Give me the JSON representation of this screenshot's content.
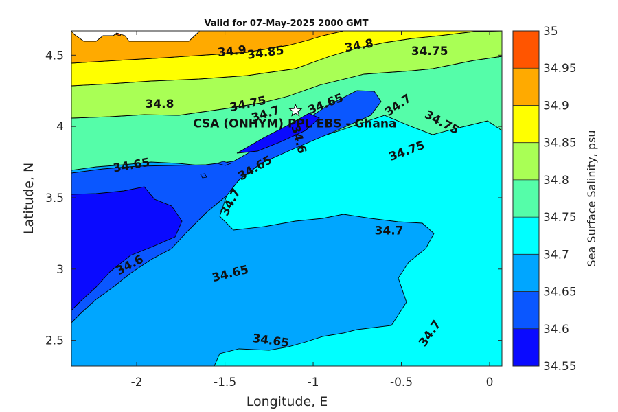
{
  "chart_data": {
    "type": "contour",
    "title": "Valid for 07-May-2025 2000 GMT",
    "xlabel": "Longitude, E",
    "ylabel": "Latitude, N",
    "xlim": [
      -2.37,
      0.07
    ],
    "ylim": [
      2.32,
      4.67
    ],
    "xticks": [
      -2,
      -1.5,
      -1,
      -0.5,
      0
    ],
    "xtick_labels": [
      "-2",
      "-1.5",
      "-1",
      "-0.5",
      "0"
    ],
    "yticks": [
      2.5,
      3,
      3.5,
      4,
      4.5
    ],
    "ytick_labels": [
      "2.5",
      "3",
      "3.5",
      "4",
      "4.5"
    ],
    "colorbar": {
      "label": "Sea Surface Salinity, psu",
      "levels": [
        34.55,
        34.6,
        34.65,
        34.7,
        34.75,
        34.8,
        34.85,
        34.9,
        34.95,
        35
      ],
      "tick_labels": [
        "34.55",
        "34.6",
        "34.65",
        "34.7",
        "34.75",
        "34.8",
        "34.85",
        "34.9",
        "34.95",
        "35"
      ],
      "colors": [
        "#0a0aff",
        "#0a57ff",
        "#00a6ff",
        "#00ffff",
        "#55fda9",
        "#a9ff55",
        "#ffff00",
        "#ffaa00",
        "#ff5500"
      ]
    },
    "site": {
      "label": "CSA (ONHYM) PPL EBS - Ghana",
      "lon": -1.1,
      "lat": 4.11
    },
    "contour_labels": [
      {
        "text": "34.9",
        "lon": -1.46,
        "lat": 4.53
      },
      {
        "text": "34.85",
        "lon": -1.27,
        "lat": 4.52
      },
      {
        "text": "34.8",
        "lon": -0.74,
        "lat": 4.57
      },
      {
        "text": "34.75",
        "lon": -0.34,
        "lat": 4.53
      },
      {
        "text": "34.8",
        "lon": -1.87,
        "lat": 4.16
      },
      {
        "text": "34.75",
        "lon": -1.37,
        "lat": 4.16
      },
      {
        "text": "34.7",
        "lon": -1.27,
        "lat": 4.09
      },
      {
        "text": "34.65",
        "lon": -0.93,
        "lat": 4.16
      },
      {
        "text": "34.7",
        "lon": -0.52,
        "lat": 4.15
      },
      {
        "text": "34.75",
        "lon": -0.27,
        "lat": 4.03
      },
      {
        "text": "34.65",
        "lon": -2.03,
        "lat": 3.73
      },
      {
        "text": "34.6",
        "lon": -1.08,
        "lat": 3.91
      },
      {
        "text": "34.65",
        "lon": -1.33,
        "lat": 3.71
      },
      {
        "text": "34.75",
        "lon": -0.47,
        "lat": 3.83
      },
      {
        "text": "34.7",
        "lon": -1.47,
        "lat": 3.47
      },
      {
        "text": "34.7",
        "lon": -0.57,
        "lat": 3.27
      },
      {
        "text": "34.6",
        "lon": -2.04,
        "lat": 3.03
      },
      {
        "text": "34.65",
        "lon": -1.47,
        "lat": 2.97
      },
      {
        "text": "34.65",
        "lon": -1.24,
        "lat": 2.5
      },
      {
        "text": "34.7",
        "lon": -0.34,
        "lat": 2.55
      }
    ]
  },
  "colors": {
    "axis": "#262626",
    "contour_line": "#000000",
    "star_fill": "#ffffff",
    "star_stroke": "#000000"
  }
}
